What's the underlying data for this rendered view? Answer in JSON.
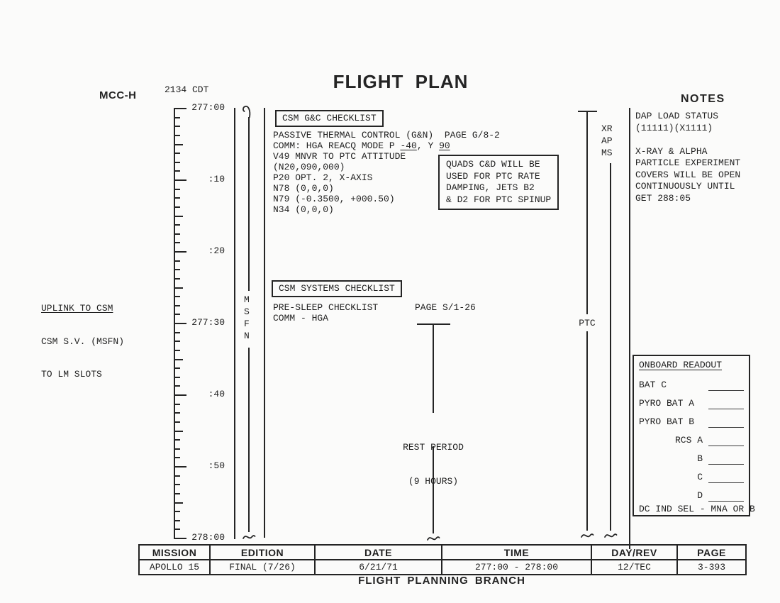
{
  "header": {
    "title": "FLIGHT PLAN",
    "left_label": "MCC-H",
    "time_label": "2134 CDT",
    "notes_label": "NOTES"
  },
  "timeline": {
    "labels": [
      "277:00",
      ":10",
      ":20",
      "277:30",
      ":40",
      ":50",
      "278:00"
    ],
    "msfn": "MSFN"
  },
  "left_note": {
    "line1": "UPLINK TO CSM",
    "line2": "CSM S.V. (MSFN)",
    "line3": "TO LM SLOTS"
  },
  "gnc": {
    "box_title": "CSM G&C CHECKLIST",
    "line1": "PASSIVE THERMAL CONTROL (G&N)  PAGE G/8-2",
    "comm": {
      "pre": "COMM: HGA REACQ MODE P ",
      "p": "-40",
      "mid": ", Y ",
      "y": "90"
    },
    "lines": [
      "V49 MNVR TO PTC ATTITUDE",
      "(N20,090,000)",
      "P20 OPT. 2, X-AXIS",
      "N78 (0,0,0)",
      "N79 (-0.3500, +000.50)",
      "N34 (0,0,0)"
    ]
  },
  "quads_note": {
    "lines": [
      "QUADS C&D WILL BE",
      "USED FOR PTC RATE",
      "DAMPING, JETS B2",
      "& D2 FOR PTC SPINUP"
    ]
  },
  "systems": {
    "box_title": "CSM SYSTEMS CHECKLIST",
    "line1": "PRE-SLEEP CHECKLIST",
    "page": "PAGE S/1-26",
    "line2": "COMM - HGA"
  },
  "rest": {
    "line1": "REST PERIOD",
    "line2": "(9 HOURS)"
  },
  "ptc_label": "PTC",
  "xrapms": {
    "lines": [
      "XR",
      "AP",
      "MS"
    ]
  },
  "notes": {
    "lines": [
      "DAP LOAD STATUS",
      "(11111)(X1111)",
      "",
      "X-RAY & ALPHA",
      "PARTICLE EXPERIMENT",
      "COVERS WILL BE OPEN",
      "CONTINUOUSLY UNTIL",
      "GET 288:05"
    ]
  },
  "onboard": {
    "title": "ONBOARD READOUT",
    "labels": [
      "BAT C",
      "PYRO BAT A",
      "PYRO BAT B",
      "RCS A",
      "B",
      "C",
      "D"
    ],
    "footer": "DC IND SEL - MNA OR B"
  },
  "table": {
    "headers": [
      "MISSION",
      "EDITION",
      "DATE",
      "TIME",
      "DAY/REV",
      "PAGE"
    ],
    "values": [
      "APOLLO 15",
      "FINAL (7/26)",
      "6/21/71",
      "277:00 - 278:00",
      "12/TEC",
      "3-393"
    ]
  },
  "footer": {
    "branch": "FLIGHT PLANNING BRANCH"
  },
  "colors": {
    "ink": "#242424",
    "paper": "#fbfbfa"
  }
}
